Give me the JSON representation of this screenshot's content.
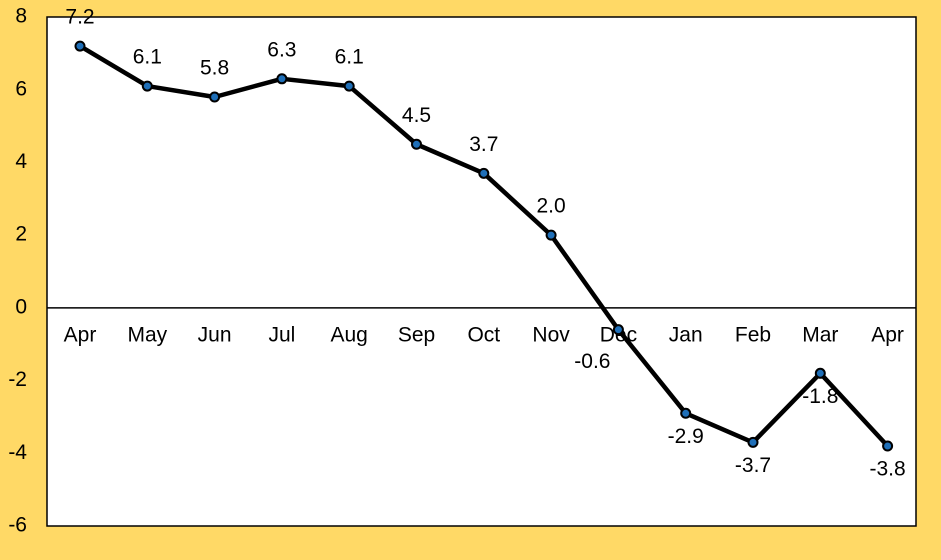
{
  "chart_data": {
    "type": "line",
    "categories": [
      "Apr",
      "May",
      "Jun",
      "Jul",
      "Aug",
      "Sep",
      "Oct",
      "Nov",
      "Dec",
      "Jan",
      "Feb",
      "Mar",
      "Apr"
    ],
    "series": [
      {
        "values": [
          7.2,
          6.1,
          5.8,
          6.3,
          6.1,
          4.5,
          3.7,
          2.0,
          -0.6,
          -2.9,
          -3.7,
          -1.8,
          -3.8
        ]
      }
    ],
    "data_labels": [
      "7.2",
      "6.1",
      "5.8",
      "6.3",
      "6.1",
      "4.5",
      "3.7",
      "2.0",
      "-0.6",
      "-2.9",
      "-3.7",
      "-1.8",
      "-3.8"
    ],
    "yticks": [
      "8",
      "6",
      "4",
      "2",
      "0",
      "-2",
      "-4",
      "-6"
    ],
    "ylim": [
      -6,
      8
    ],
    "grid": false,
    "legend": "none",
    "colors": {
      "background": "#FFD966",
      "plot_area": "#FFFFFF",
      "line": "#000000",
      "marker_fill": "#1F6FB8"
    }
  }
}
